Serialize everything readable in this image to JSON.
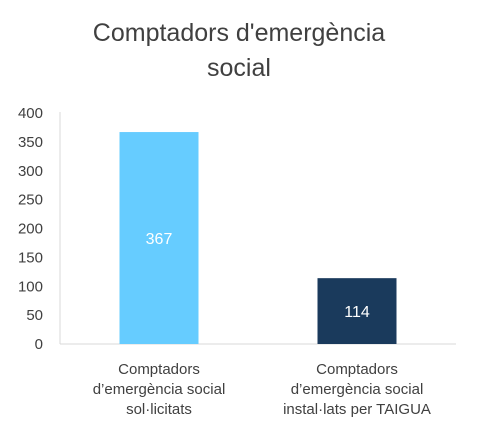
{
  "chart_data": {
    "type": "bar",
    "title_lines": [
      "Comptadors d'emergència",
      "social"
    ],
    "categories": [
      [
        "Comptadors",
        "d’emergència social",
        "sol·licitats"
      ],
      [
        "Comptadors",
        "d’emergència social",
        "instal·lats per TAIGUA"
      ]
    ],
    "values": [
      367,
      114
    ],
    "data_labels": [
      "367",
      "114"
    ],
    "bar_colors": [
      "#66CCFF",
      "#1A3A5C"
    ],
    "label_colors": [
      "#ffffff",
      "#ffffff"
    ],
    "ylim": [
      0,
      400
    ],
    "yticks": [
      "0",
      "50",
      "100",
      "150",
      "200",
      "250",
      "300",
      "350",
      "400"
    ],
    "grid": false,
    "legend": false
  }
}
